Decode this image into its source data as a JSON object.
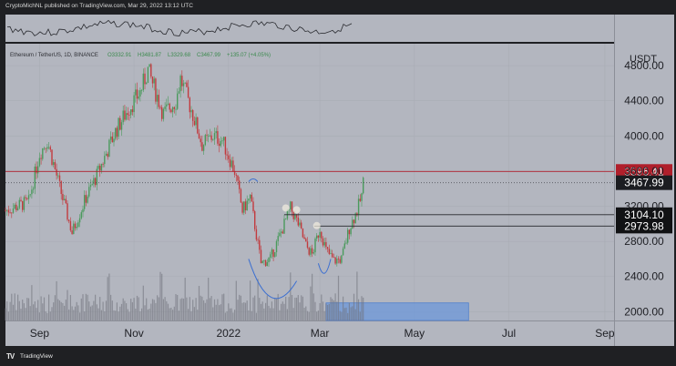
{
  "header": {
    "published": "CryptoMichNL published on TradingView.com, Mar 29, 2022 13:12 UTC"
  },
  "footer": {
    "logo": "TV",
    "brand": "TradingView"
  },
  "symbol_line": {
    "name": "Ethereum / TetherUS, 1D, BINANCE",
    "open": "O3332.91",
    "high": "H3481.87",
    "low": "L3329.68",
    "close": "C3467.99",
    "change": "+135.07 (+4.05%)"
  },
  "currency": "USDT",
  "colors": {
    "background": "#b3b6bf",
    "up": "#4a9a5c",
    "down": "#c23a3e",
    "resistance": "#b01f2b",
    "zone": "#6c97d9",
    "arc": "#3b6fd1"
  },
  "chart_data": {
    "type": "candlestick",
    "ylim": [
      1900,
      5050
    ],
    "y_ticks": [
      2000,
      2400,
      2800,
      3200,
      3600,
      4000,
      4400,
      4800
    ],
    "y_tick_labels": [
      "2000.00",
      "2400.00",
      "2800.00",
      "3200.00",
      "3600.00",
      "4000.00",
      "4400.00",
      "4800.00"
    ],
    "x_ticks": [
      "Sep",
      "Nov",
      "2022",
      "Mar",
      "May",
      "Jul",
      "Sep"
    ],
    "price_path": [
      {
        "date": "2021-08-10",
        "price": 3150
      },
      {
        "date": "2021-08-25",
        "price": 3250
      },
      {
        "date": "2021-09-01",
        "price": 3800
      },
      {
        "date": "2021-09-06",
        "price": 3950
      },
      {
        "date": "2021-09-15",
        "price": 3350
      },
      {
        "date": "2021-09-22",
        "price": 2900
      },
      {
        "date": "2021-10-01",
        "price": 3300
      },
      {
        "date": "2021-10-08",
        "price": 3550
      },
      {
        "date": "2021-10-20",
        "price": 4050
      },
      {
        "date": "2021-10-28",
        "price": 4300
      },
      {
        "date": "2021-11-05",
        "price": 4500
      },
      {
        "date": "2021-11-10",
        "price": 4750
      },
      {
        "date": "2021-11-20",
        "price": 4250
      },
      {
        "date": "2021-11-28",
        "price": 4400
      },
      {
        "date": "2021-12-01",
        "price": 4650
      },
      {
        "date": "2021-12-08",
        "price": 4300
      },
      {
        "date": "2021-12-15",
        "price": 3900
      },
      {
        "date": "2021-12-22",
        "price": 4000
      },
      {
        "date": "2021-12-28",
        "price": 3950
      },
      {
        "date": "2022-01-05",
        "price": 3600
      },
      {
        "date": "2022-01-10",
        "price": 3150
      },
      {
        "date": "2022-01-15",
        "price": 3300
      },
      {
        "date": "2022-01-22",
        "price": 2550
      },
      {
        "date": "2022-01-28",
        "price": 2600
      },
      {
        "date": "2022-02-05",
        "price": 2950
      },
      {
        "date": "2022-02-10",
        "price": 3180
      },
      {
        "date": "2022-02-15",
        "price": 3000
      },
      {
        "date": "2022-02-20",
        "price": 2750
      },
      {
        "date": "2022-02-24",
        "price": 2650
      },
      {
        "date": "2022-03-01",
        "price": 2950
      },
      {
        "date": "2022-03-05",
        "price": 2700
      },
      {
        "date": "2022-03-10",
        "price": 2580
      },
      {
        "date": "2022-03-15",
        "price": 2600
      },
      {
        "date": "2022-03-20",
        "price": 2950
      },
      {
        "date": "2022-03-25",
        "price": 3150
      },
      {
        "date": "2022-03-28",
        "price": 3320
      },
      {
        "date": "2022-03-29",
        "price": 3468
      }
    ],
    "levels": [
      {
        "value": 3596.41,
        "label": "3596.41",
        "kind": "resistance"
      },
      {
        "value": 3467.99,
        "label": "3467.99",
        "kind": "last-price"
      },
      {
        "value": 3104.1,
        "label": "3104.10",
        "kind": "support"
      },
      {
        "value": 2973.98,
        "label": "2973.98",
        "kind": "support"
      }
    ],
    "zone": {
      "from": "2022-03-05",
      "to": "2022-06-05",
      "low": 1900,
      "high": 2100
    }
  }
}
